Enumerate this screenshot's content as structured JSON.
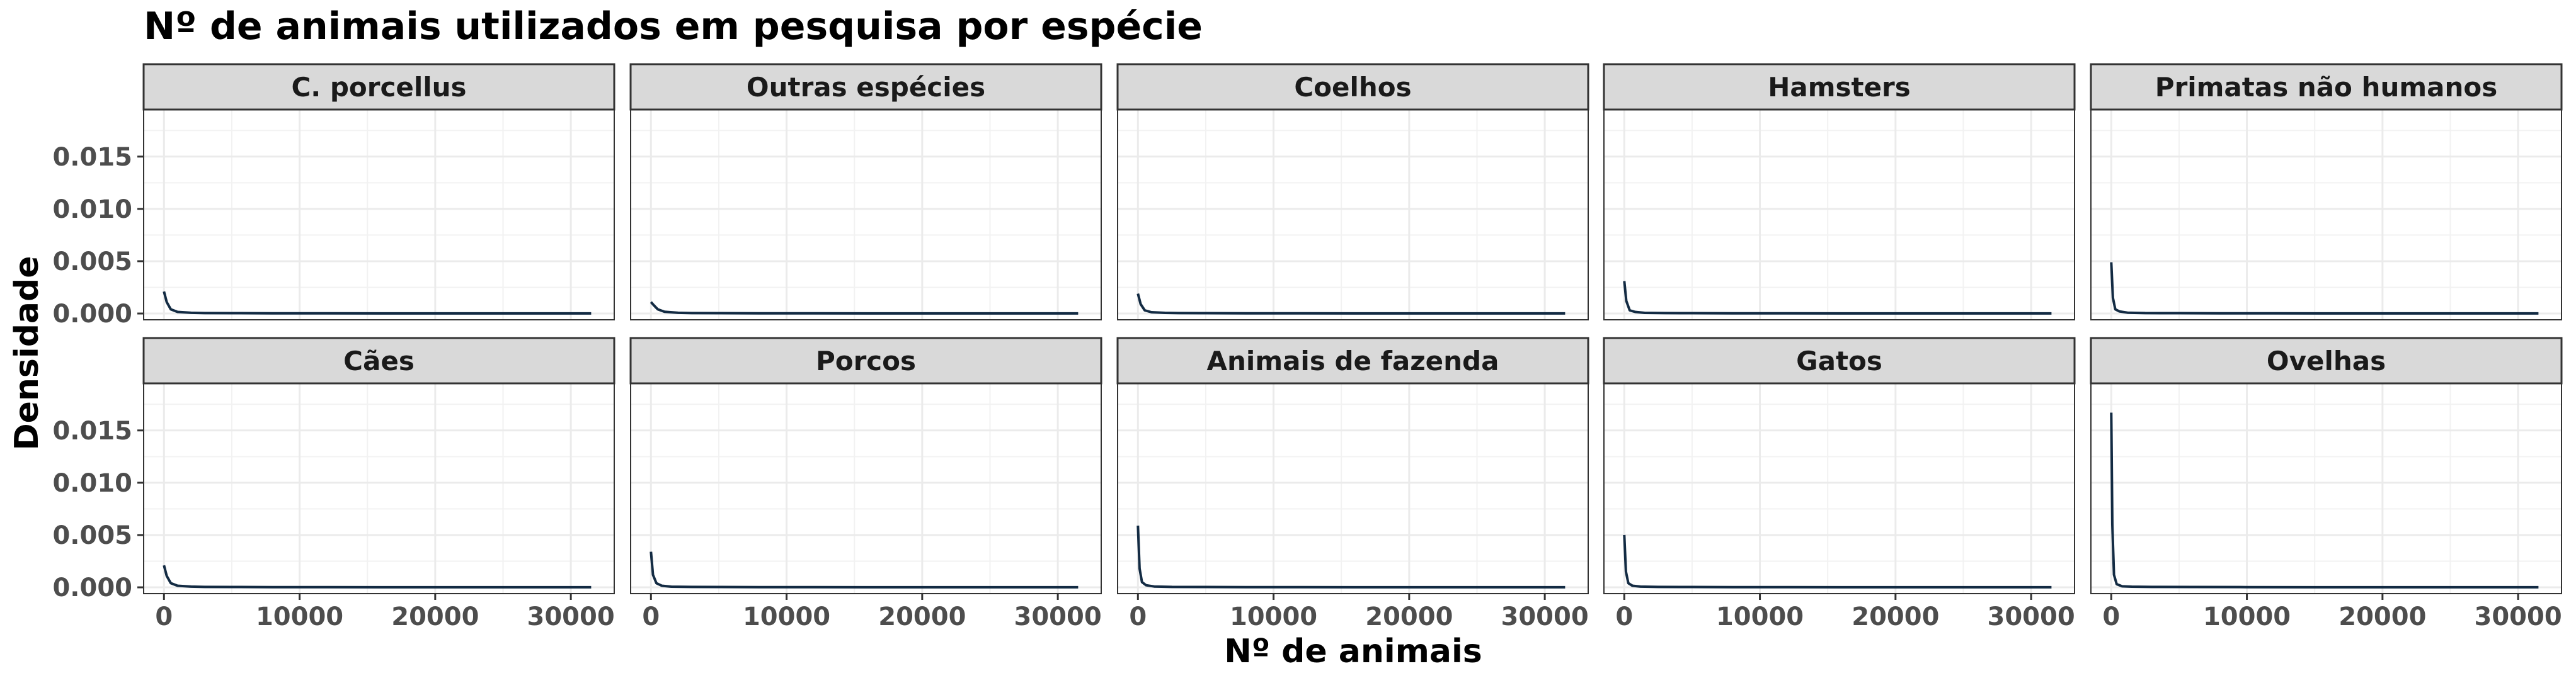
{
  "chart_data": {
    "type": "line",
    "title": "Nº de animais utilizados em pesquisa por espécie",
    "xlabel": "Nº de animais",
    "ylabel": "Densidade",
    "xlim": [
      -1500,
      33200
    ],
    "ylim": [
      -0.0006,
      0.0195
    ],
    "x_ticks": [
      0,
      10000,
      20000,
      30000
    ],
    "x_tick_labels": [
      "0",
      "10000",
      "20000",
      "30000"
    ],
    "y_ticks": [
      0.0,
      0.005,
      0.01,
      0.015
    ],
    "y_tick_labels": [
      "0.000",
      "0.005",
      "0.010",
      "0.015"
    ],
    "grid": true,
    "layout": "facet grid 2 rows x 5 columns",
    "line_color": "#132b43",
    "panel_border_color": "#333333",
    "strip_fill_color": "#d9d9d9",
    "panels": [
      {
        "label": "C. porcellus",
        "x": [
          0,
          200,
          500,
          1000,
          2000,
          3000,
          5000,
          8000,
          12000,
          16000,
          20000,
          25000,
          31500
        ],
        "y": [
          0.0021,
          0.0011,
          0.0004,
          0.00015,
          7e-05,
          4e-05,
          3e-05,
          2e-05,
          2e-05,
          1e-05,
          1e-05,
          1e-05,
          1e-05
        ]
      },
      {
        "label": "Outras espécies",
        "x": [
          0,
          200,
          500,
          1000,
          2000,
          3000,
          5000,
          8000,
          12000,
          16000,
          20000,
          25000,
          31500
        ],
        "y": [
          0.0011,
          0.0008,
          0.0004,
          0.00017,
          7e-05,
          4e-05,
          3e-05,
          2e-05,
          2e-05,
          1e-05,
          1e-05,
          1e-05,
          1e-05
        ]
      },
      {
        "label": "Coelhos",
        "x": [
          0,
          200,
          500,
          1000,
          2000,
          3000,
          5000,
          8000,
          12000,
          16000,
          20000,
          25000,
          31500
        ],
        "y": [
          0.0019,
          0.0009,
          0.0003,
          0.00012,
          6e-05,
          4e-05,
          3e-05,
          2e-05,
          2e-05,
          1e-05,
          1e-05,
          1e-05,
          1e-05
        ]
      },
      {
        "label": "Hamsters",
        "x": [
          0,
          150,
          400,
          800,
          1500,
          3000,
          5000,
          8000,
          12000,
          16000,
          20000,
          25000,
          31500
        ],
        "y": [
          0.0031,
          0.0012,
          0.0003,
          0.00015,
          6e-05,
          4e-05,
          3e-05,
          2e-05,
          2e-05,
          1e-05,
          1e-05,
          1e-05,
          1e-05
        ]
      },
      {
        "label": "Primatas não humanos",
        "x": [
          0,
          120,
          300,
          600,
          1200,
          2500,
          5000,
          8000,
          12000,
          16000,
          20000,
          25000,
          31500
        ],
        "y": [
          0.0049,
          0.0015,
          0.0004,
          0.0002,
          8e-05,
          4e-05,
          3e-05,
          2e-05,
          2e-05,
          1e-05,
          1e-05,
          1e-05,
          1e-05
        ]
      },
      {
        "label": "Cães",
        "x": [
          0,
          200,
          500,
          1000,
          2000,
          3000,
          5000,
          8000,
          12000,
          16000,
          20000,
          25000,
          31500
        ],
        "y": [
          0.0021,
          0.0011,
          0.0004,
          0.00015,
          7e-05,
          4e-05,
          3e-05,
          2e-05,
          2e-05,
          1e-05,
          1e-05,
          1e-05,
          1e-05
        ]
      },
      {
        "label": "Porcos",
        "x": [
          0,
          150,
          400,
          800,
          1500,
          3000,
          5000,
          8000,
          12000,
          16000,
          20000,
          25000,
          31500
        ],
        "y": [
          0.0034,
          0.0012,
          0.0004,
          0.00015,
          6e-05,
          4e-05,
          3e-05,
          2e-05,
          2e-05,
          1e-05,
          1e-05,
          1e-05,
          1e-05
        ]
      },
      {
        "label": "Animais de fazenda",
        "x": [
          0,
          120,
          300,
          600,
          1200,
          2500,
          5000,
          8000,
          12000,
          16000,
          20000,
          25000,
          31500
        ],
        "y": [
          0.0059,
          0.0018,
          0.0005,
          0.0002,
          8e-05,
          4e-05,
          3e-05,
          2e-05,
          2e-05,
          1e-05,
          1e-05,
          1e-05,
          1e-05
        ]
      },
      {
        "label": "Gatos",
        "x": [
          0,
          120,
          300,
          600,
          1200,
          2500,
          5000,
          8000,
          12000,
          16000,
          20000,
          25000,
          31500
        ],
        "y": [
          0.005,
          0.0015,
          0.0004,
          0.00015,
          7e-05,
          4e-05,
          3e-05,
          2e-05,
          2e-05,
          1e-05,
          1e-05,
          1e-05,
          1e-05
        ]
      },
      {
        "label": "Ovelhas",
        "x": [
          0,
          80,
          200,
          400,
          800,
          1500,
          3000,
          6000,
          10000,
          15000,
          20000,
          25000,
          31500
        ],
        "y": [
          0.0167,
          0.006,
          0.0012,
          0.0003,
          0.0001,
          6e-05,
          4e-05,
          3e-05,
          2e-05,
          1e-05,
          1e-05,
          1e-05,
          1e-05
        ]
      }
    ]
  }
}
